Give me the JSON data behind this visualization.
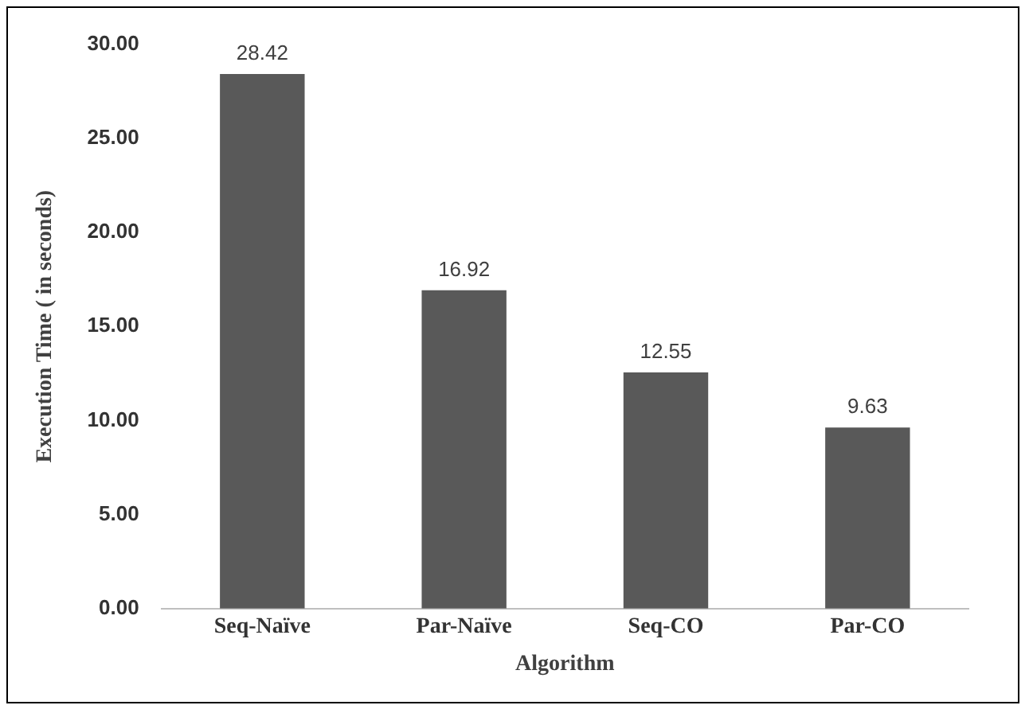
{
  "chart_data": {
    "type": "bar",
    "xlabel": "Algorithm",
    "ylabel": "Execution Time ( in seconds)",
    "categories": [
      "Seq-Naïve",
      "Par-Naïve",
      "Seq-CO",
      "Par-CO"
    ],
    "values": [
      28.42,
      16.92,
      12.55,
      9.63
    ],
    "color": "#595959",
    "ylim": [
      0,
      30
    ],
    "yticks": [
      {
        "value": 0,
        "label": "0.00"
      },
      {
        "value": 5,
        "label": "5.00"
      },
      {
        "value": 10,
        "label": "10.00"
      },
      {
        "value": 15,
        "label": "15.00"
      },
      {
        "value": 20,
        "label": "20.00"
      },
      {
        "value": 25,
        "label": "25.00"
      },
      {
        "value": 30,
        "label": "30.00"
      }
    ],
    "grid": false,
    "legend": false,
    "data_labels": true
  }
}
